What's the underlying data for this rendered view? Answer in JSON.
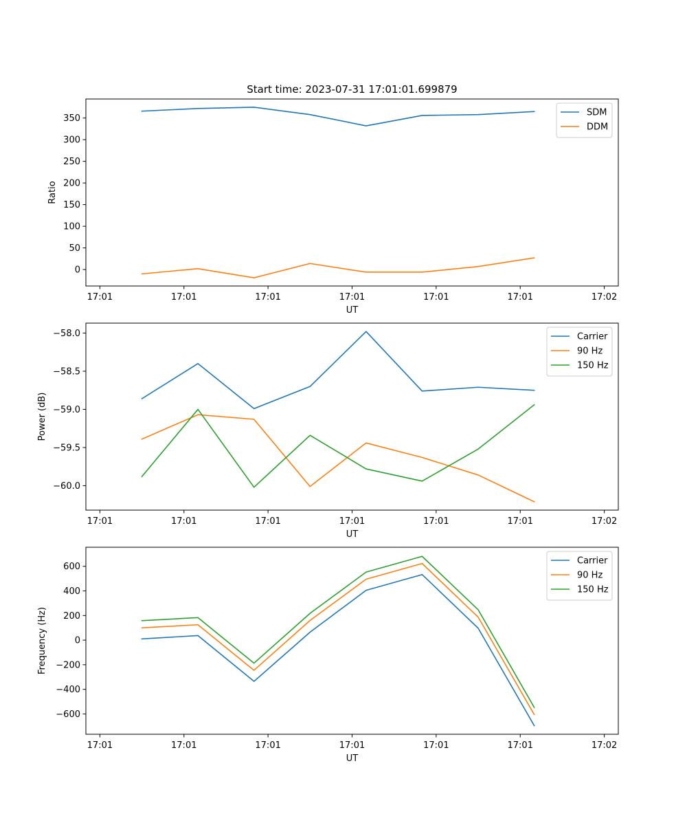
{
  "colors": {
    "blue": "#1f77b4",
    "orange": "#ff7f0e",
    "green": "#2ca02c"
  },
  "chart_data": [
    {
      "type": "line",
      "title": "Start time: 2023-07-31 17:01:01.699879",
      "xlabel": "UT",
      "ylabel": "Ratio",
      "xlim": [
        -0.25,
        9.25
      ],
      "ylim": [
        -38,
        394
      ],
      "x_ticks": [
        0,
        1.5,
        3,
        4.5,
        6,
        7.5,
        9
      ],
      "x_tick_labels": [
        "17:01",
        "17:01",
        "17:01",
        "17:01",
        "17:01",
        "17:01",
        "17:02"
      ],
      "y_ticks": [
        0,
        50,
        100,
        150,
        200,
        250,
        300,
        350
      ],
      "y_tick_labels": [
        "0",
        "50",
        "100",
        "150",
        "200",
        "250",
        "300",
        "350"
      ],
      "legend_position": "top-right",
      "x": [
        0.75,
        1.75,
        2.75,
        3.75,
        4.75,
        5.75,
        6.75,
        7.75
      ],
      "series": [
        {
          "name": "SDM",
          "color": "#1f77b4",
          "values": [
            366,
            372,
            375,
            358,
            332,
            356,
            358,
            365
          ]
        },
        {
          "name": "DDM",
          "color": "#ff7f0e",
          "values": [
            -10,
            2,
            -19,
            14,
            -6,
            -6,
            7,
            27
          ]
        }
      ]
    },
    {
      "type": "line",
      "title": "",
      "xlabel": "UT",
      "ylabel": "Power (dB)",
      "xlim": [
        -0.25,
        9.25
      ],
      "ylim": [
        -60.32,
        -57.87
      ],
      "x_ticks": [
        0,
        1.5,
        3,
        4.5,
        6,
        7.5,
        9
      ],
      "x_tick_labels": [
        "17:01",
        "17:01",
        "17:01",
        "17:01",
        "17:01",
        "17:01",
        "17:02"
      ],
      "y_ticks": [
        -60.0,
        -59.5,
        -59.0,
        -58.5,
        -58.0
      ],
      "y_tick_labels": [
        "−60.0",
        "−59.5",
        "−59.0",
        "−58.5",
        "−58.0"
      ],
      "legend_position": "top-right",
      "x": [
        0.75,
        1.75,
        2.75,
        3.75,
        4.75,
        5.75,
        6.75,
        7.75
      ],
      "series": [
        {
          "name": "Carrier",
          "color": "#1f77b4",
          "values": [
            -58.86,
            -58.4,
            -58.99,
            -58.7,
            -57.98,
            -58.76,
            -58.71,
            -58.75
          ]
        },
        {
          "name": "90 Hz",
          "color": "#ff7f0e",
          "values": [
            -59.39,
            -59.07,
            -59.13,
            -60.01,
            -59.44,
            -59.63,
            -59.86,
            -60.21
          ]
        },
        {
          "name": "150 Hz",
          "color": "#2ca02c",
          "values": [
            -59.88,
            -59.0,
            -60.02,
            -59.34,
            -59.78,
            -59.94,
            -59.52,
            -58.94
          ]
        }
      ]
    },
    {
      "type": "line",
      "title": "",
      "xlabel": "UT",
      "ylabel": "Frequency (Hz)",
      "xlim": [
        -0.25,
        9.25
      ],
      "ylim": [
        -765,
        755
      ],
      "x_ticks": [
        0,
        1.5,
        3,
        4.5,
        6,
        7.5,
        9
      ],
      "x_tick_labels": [
        "17:01",
        "17:01",
        "17:01",
        "17:01",
        "17:01",
        "17:01",
        "17:02"
      ],
      "y_ticks": [
        -600,
        -400,
        -200,
        0,
        200,
        400,
        600
      ],
      "y_tick_labels": [
        "−600",
        "−400",
        "−200",
        "0",
        "200",
        "400",
        "600"
      ],
      "legend_position": "top-right",
      "x": [
        0.75,
        1.75,
        2.75,
        3.75,
        4.75,
        5.75,
        6.75,
        7.75
      ],
      "series": [
        {
          "name": "Carrier",
          "color": "#1f77b4",
          "values": [
            10,
            37,
            -335,
            65,
            405,
            533,
            97,
            -695
          ]
        },
        {
          "name": "90 Hz",
          "color": "#ff7f0e",
          "values": [
            100,
            125,
            -245,
            160,
            495,
            623,
            187,
            -605
          ]
        },
        {
          "name": "150 Hz",
          "color": "#2ca02c",
          "values": [
            158,
            183,
            -187,
            218,
            553,
            681,
            247,
            -547
          ]
        }
      ]
    }
  ]
}
